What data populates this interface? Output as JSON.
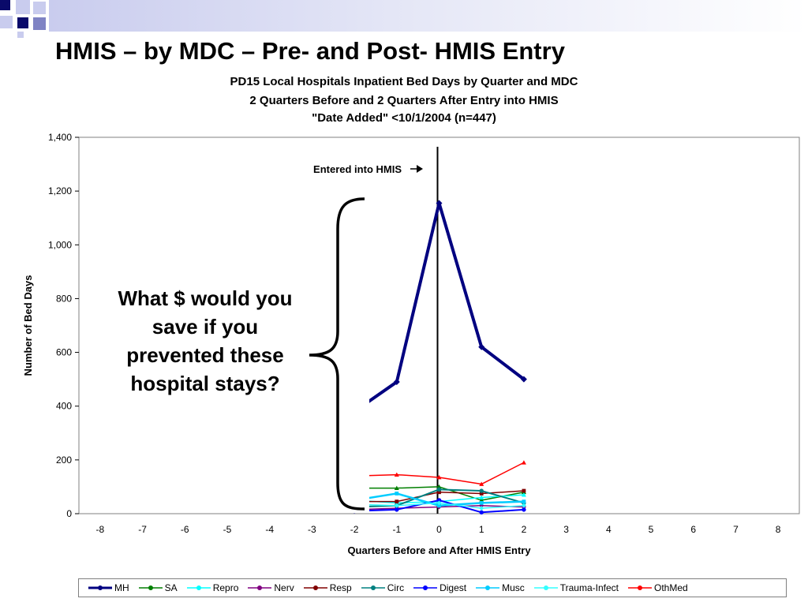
{
  "slide": {
    "title": "HMIS – by MDC – Pre- and Post- HMIS Entry",
    "callout": "What $ would you save if you prevented these hospital stays?",
    "colors": {
      "band": "#c9ccee",
      "corner_dark": "#0a0a6a",
      "corner_mid": "#7f83c4",
      "corner_light": "#c9ccee"
    }
  },
  "chart_data": {
    "type": "line",
    "title": [
      "PD15 Local Hospitals Inpatient Bed Days by Quarter and MDC",
      "2 Quarters Before and 2 Quarters After Entry into HMIS",
      "\"Date Added\" <10/1/2004 (n=447)"
    ],
    "xlabel": "Quarters Before and After HMIS Entry",
    "ylabel": "Number of Bed Days",
    "xlim": [
      -8,
      8
    ],
    "ylim": [
      0,
      1400
    ],
    "x_ticks": [
      "-8",
      "-7",
      "-6",
      "-5",
      "-4",
      "-3",
      "-2",
      "-1",
      "0",
      "1",
      "2",
      "3",
      "4",
      "5",
      "6",
      "7",
      "8"
    ],
    "y_ticks": [
      "0",
      "200",
      "400",
      "600",
      "800",
      "1,000",
      "1,200",
      "1,400"
    ],
    "annotation": {
      "text": "Entered into HMIS",
      "x": 0
    },
    "legend_position": "bottom",
    "series": [
      {
        "name": "MH",
        "color": "#000080",
        "marker": "diamond",
        "width": 4,
        "x": [
          -2,
          -1,
          0,
          1,
          2
        ],
        "y": [
          380,
          490,
          1155,
          620,
          500
        ]
      },
      {
        "name": "SA",
        "color": "#007f00",
        "marker": "triangle",
        "width": 1.5,
        "x": [
          -2,
          -1,
          0,
          1,
          2
        ],
        "y": [
          95,
          95,
          100,
          50,
          80
        ]
      },
      {
        "name": "Repro",
        "color": "#00ffff",
        "marker": "triangle",
        "width": 1.5,
        "x": [
          -2,
          -1,
          0,
          1,
          2
        ],
        "y": [
          50,
          40,
          45,
          60,
          70
        ]
      },
      {
        "name": "Nerv",
        "color": "#800080",
        "marker": "diamond",
        "width": 1.5,
        "x": [
          -2,
          -1,
          0,
          1,
          2
        ],
        "y": [
          15,
          20,
          25,
          30,
          25
        ]
      },
      {
        "name": "Resp",
        "color": "#800000",
        "marker": "square",
        "width": 1.5,
        "x": [
          -2,
          -1,
          0,
          1,
          2
        ],
        "y": [
          45,
          45,
          80,
          75,
          85
        ]
      },
      {
        "name": "Circ",
        "color": "#008080",
        "marker": "circle",
        "width": 2,
        "x": [
          -2,
          -1,
          0,
          1,
          2
        ],
        "y": [
          25,
          30,
          90,
          85,
          40
        ]
      },
      {
        "name": "Digest",
        "color": "#0000ff",
        "marker": "circle",
        "width": 2,
        "x": [
          -2,
          -1,
          0,
          1,
          2
        ],
        "y": [
          10,
          15,
          50,
          5,
          15
        ]
      },
      {
        "name": "Musc",
        "color": "#00ccff",
        "marker": "square",
        "width": 2.5,
        "x": [
          -2,
          -1,
          0,
          1,
          2
        ],
        "y": [
          50,
          75,
          30,
          40,
          45
        ]
      },
      {
        "name": "Trauma-Infect",
        "color": "#33ffff",
        "marker": "diamond",
        "width": 1.5,
        "x": [
          -2,
          -1,
          0,
          1,
          2
        ],
        "y": [
          35,
          30,
          40,
          20,
          30
        ]
      },
      {
        "name": "OthMed",
        "color": "#ff0000",
        "marker": "triangle",
        "width": 1.5,
        "x": [
          -2,
          -1,
          0,
          1,
          2
        ],
        "y": [
          140,
          145,
          135,
          110,
          190
        ]
      }
    ]
  }
}
